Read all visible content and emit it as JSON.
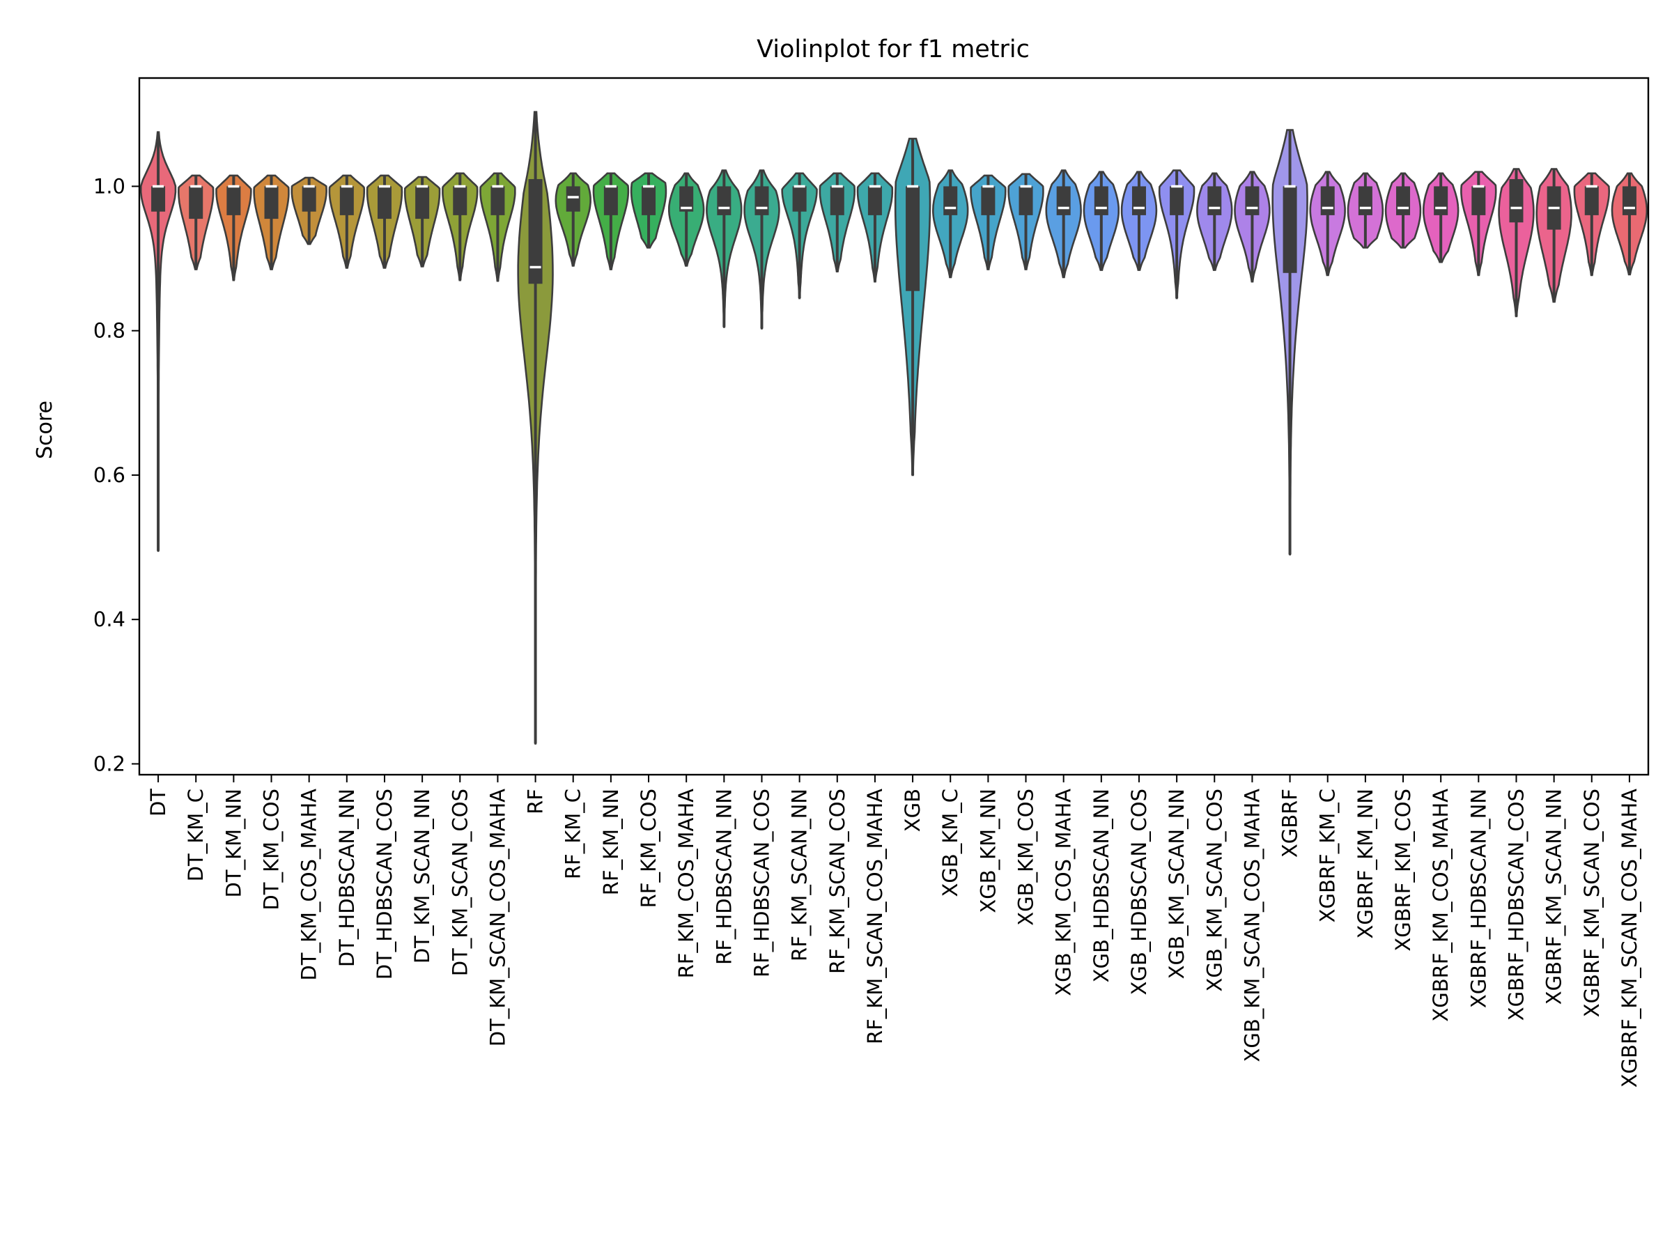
{
  "chart_data": {
    "type": "violin",
    "title": "Violinplot for f1 metric",
    "xlabel": "",
    "ylabel": "Score",
    "ylim": [
      0.185,
      1.15
    ],
    "yticks": [
      0.2,
      0.4,
      0.6,
      0.8,
      1.0
    ],
    "ytick_labels": [
      "0.2",
      "0.4",
      "0.6",
      "0.8",
      "1.0"
    ],
    "grid": false,
    "categories": [
      "DT",
      "DT_KM_C",
      "DT_KM_NN",
      "DT_KM_COS",
      "DT_KM_COS_MAHA",
      "DT_HDBSCAN_NN",
      "DT_HDBSCAN_COS",
      "DT_KM_SCAN_NN",
      "DT_KM_SCAN_COS",
      "DT_KM_SCAN_COS_MAHA",
      "RF",
      "RF_KM_C",
      "RF_KM_NN",
      "RF_KM_COS",
      "RF_KM_COS_MAHA",
      "RF_HDBSCAN_NN",
      "RF_HDBSCAN_COS",
      "RF_KM_SCAN_NN",
      "RF_KM_SCAN_COS",
      "RF_KM_SCAN_COS_MAHA",
      "XGB",
      "XGB_KM_C",
      "XGB_KM_NN",
      "XGB_KM_COS",
      "XGB_KM_COS_MAHA",
      "XGB_HDBSCAN_NN",
      "XGB_HDBSCAN_COS",
      "XGB_KM_SCAN_NN",
      "XGB_KM_SCAN_COS",
      "XGB_KM_SCAN_COS_MAHA",
      "XGBRF",
      "XGBRF_KM_C",
      "XGBRF_KM_NN",
      "XGBRF_KM_COS",
      "XGBRF_KM_COS_MAHA",
      "XGBRF_HDBSCAN_NN",
      "XGBRF_HDBSCAN_COS",
      "XGBRF_KM_SCAN_NN",
      "XGBRF_KM_SCAN_COS",
      "XGBRF_KM_SCAN_COS_MAHA"
    ],
    "colors": [
      "#e8697a",
      "#e7776a",
      "#dc7d43",
      "#d0873b",
      "#c28f3b",
      "#b5963a",
      "#a99a39",
      "#9c9e38",
      "#8fa237",
      "#7ea736",
      "#8b9a3c",
      "#62aa3a",
      "#44ae47",
      "#36b05e",
      "#38ae74",
      "#39ad83",
      "#3bab90",
      "#3caa99",
      "#3da9a2",
      "#3ea8ab",
      "#3fa7b5",
      "#42a6bf",
      "#46a4ca",
      "#4ea2d6",
      "#5a9fe2",
      "#6a9aee",
      "#7d95f2",
      "#8f8ff0",
      "#9f89ec",
      "#ad82e8",
      "#a097ea",
      "#c87ae0",
      "#d372d7",
      "#dd69cb",
      "#e462bd",
      "#e860ad",
      "#eb619c",
      "#eb648c",
      "#ea677e",
      "#e96a72"
    ],
    "stats": [
      {
        "min": 0.495,
        "q1": 0.965,
        "median": 1.0,
        "q3": 1.0,
        "max": 1.075
      },
      {
        "min": 0.885,
        "q1": 0.955,
        "median": 1.0,
        "q3": 1.0,
        "max": 1.015
      },
      {
        "min": 0.87,
        "q1": 0.96,
        "median": 1.0,
        "q3": 1.0,
        "max": 1.015
      },
      {
        "min": 0.885,
        "q1": 0.955,
        "median": 1.0,
        "q3": 1.0,
        "max": 1.015
      },
      {
        "min": 0.92,
        "q1": 0.965,
        "median": 1.0,
        "q3": 1.0,
        "max": 1.012
      },
      {
        "min": 0.887,
        "q1": 0.96,
        "median": 1.0,
        "q3": 1.0,
        "max": 1.015
      },
      {
        "min": 0.887,
        "q1": 0.955,
        "median": 1.0,
        "q3": 1.0,
        "max": 1.015
      },
      {
        "min": 0.889,
        "q1": 0.955,
        "median": 1.0,
        "q3": 1.0,
        "max": 1.013
      },
      {
        "min": 0.87,
        "q1": 0.96,
        "median": 1.0,
        "q3": 1.0,
        "max": 1.018
      },
      {
        "min": 0.869,
        "q1": 0.96,
        "median": 1.0,
        "q3": 1.0,
        "max": 1.018
      },
      {
        "min": 0.228,
        "q1": 0.865,
        "median": 0.888,
        "q3": 1.01,
        "max": 1.103
      },
      {
        "min": 0.89,
        "q1": 0.965,
        "median": 0.985,
        "q3": 1.0,
        "max": 1.018
      },
      {
        "min": 0.885,
        "q1": 0.96,
        "median": 1.0,
        "q3": 1.0,
        "max": 1.018
      },
      {
        "min": 0.915,
        "q1": 0.96,
        "median": 1.0,
        "q3": 1.0,
        "max": 1.018
      },
      {
        "min": 0.89,
        "q1": 0.965,
        "median": 0.97,
        "q3": 1.0,
        "max": 1.018
      },
      {
        "min": 0.805,
        "q1": 0.96,
        "median": 0.97,
        "q3": 1.0,
        "max": 1.022
      },
      {
        "min": 0.803,
        "q1": 0.96,
        "median": 0.97,
        "q3": 1.0,
        "max": 1.022
      },
      {
        "min": 0.845,
        "q1": 0.965,
        "median": 1.0,
        "q3": 1.0,
        "max": 1.018
      },
      {
        "min": 0.882,
        "q1": 0.96,
        "median": 1.0,
        "q3": 1.0,
        "max": 1.018
      },
      {
        "min": 0.868,
        "q1": 0.96,
        "median": 1.0,
        "q3": 1.0,
        "max": 1.018
      },
      {
        "min": 0.6,
        "q1": 0.855,
        "median": 1.0,
        "q3": 1.0,
        "max": 1.066
      },
      {
        "min": 0.874,
        "q1": 0.96,
        "median": 0.97,
        "q3": 1.0,
        "max": 1.022
      },
      {
        "min": 0.885,
        "q1": 0.96,
        "median": 1.0,
        "q3": 1.0,
        "max": 1.015
      },
      {
        "min": 0.885,
        "q1": 0.96,
        "median": 1.0,
        "q3": 1.0,
        "max": 1.017
      },
      {
        "min": 0.874,
        "q1": 0.96,
        "median": 0.97,
        "q3": 1.0,
        "max": 1.022
      },
      {
        "min": 0.884,
        "q1": 0.96,
        "median": 0.97,
        "q3": 1.0,
        "max": 1.02
      },
      {
        "min": 0.884,
        "q1": 0.96,
        "median": 0.97,
        "q3": 1.0,
        "max": 1.02
      },
      {
        "min": 0.845,
        "q1": 0.96,
        "median": 1.0,
        "q3": 1.0,
        "max": 1.022
      },
      {
        "min": 0.884,
        "q1": 0.96,
        "median": 0.97,
        "q3": 1.0,
        "max": 1.018
      },
      {
        "min": 0.868,
        "q1": 0.96,
        "median": 0.97,
        "q3": 1.0,
        "max": 1.02
      },
      {
        "min": 0.49,
        "q1": 0.88,
        "median": 1.0,
        "q3": 1.0,
        "max": 1.078
      },
      {
        "min": 0.877,
        "q1": 0.96,
        "median": 0.97,
        "q3": 1.0,
        "max": 1.02
      },
      {
        "min": 0.915,
        "q1": 0.96,
        "median": 0.97,
        "q3": 1.0,
        "max": 1.018
      },
      {
        "min": 0.915,
        "q1": 0.96,
        "median": 0.97,
        "q3": 1.0,
        "max": 1.018
      },
      {
        "min": 0.895,
        "q1": 0.96,
        "median": 0.97,
        "q3": 1.0,
        "max": 1.018
      },
      {
        "min": 0.877,
        "q1": 0.96,
        "median": 1.0,
        "q3": 1.0,
        "max": 1.02
      },
      {
        "min": 0.82,
        "q1": 0.95,
        "median": 0.97,
        "q3": 1.01,
        "max": 1.024
      },
      {
        "min": 0.84,
        "q1": 0.94,
        "median": 0.97,
        "q3": 1.0,
        "max": 1.024
      },
      {
        "min": 0.877,
        "q1": 0.96,
        "median": 1.0,
        "q3": 1.0,
        "max": 1.018
      },
      {
        "min": 0.878,
        "q1": 0.96,
        "median": 0.97,
        "q3": 1.0,
        "max": 1.018
      }
    ]
  }
}
